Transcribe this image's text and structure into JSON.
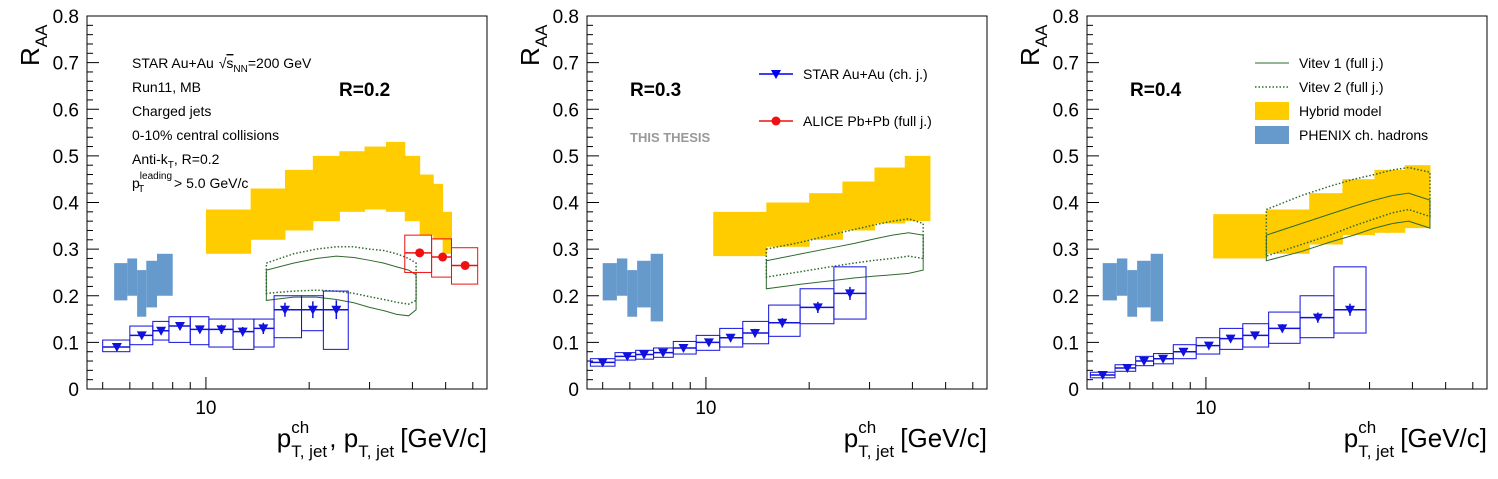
{
  "chart_data": [
    {
      "type": "scatter",
      "xscale": "log",
      "xlim": [
        4.5,
        66
      ],
      "ylim": [
        0,
        0.8
      ],
      "yticks": [
        0,
        0.1,
        0.2,
        0.3,
        0.4,
        0.5,
        0.6,
        0.7,
        0.8
      ],
      "yticklabels": [
        "0",
        "0.1",
        "0.2",
        "0.3",
        "0.4",
        "0.5",
        "0.6",
        "0.7",
        "0.8"
      ],
      "xticklabels": [
        {
          "x": 10,
          "label": "10"
        }
      ],
      "ylabel": "R",
      "ylabel_sub": "AA",
      "xlabel_parts": [
        {
          "base": "p",
          "sup": "ch",
          "sub": "T, jet"
        },
        {
          "base": ", p",
          "sup": "",
          "sub": "T, jet"
        }
      ],
      "xlabel_unit": "[GeV/c]",
      "radius_label": "R=0.2",
      "info_lines": [
        {
          "pre": "STAR Au+Au ",
          "sqrt": "s",
          "sqrt_sub": "NN",
          "post": "=200 GeV"
        },
        {
          "pre": "Run11, MB"
        },
        {
          "pre": "Charged jets"
        },
        {
          "pre": "0-10% central collisions"
        },
        {
          "pre": "Anti-k",
          "sub": "T",
          "post": ", R=0.2"
        },
        {
          "pre": "p",
          "sub": "T",
          "sup": "leading",
          "post": " > 5.0 GeV/c"
        }
      ],
      "legend": [],
      "watermark": "",
      "phenix": [
        {
          "x": [
            5.4,
            5.9
          ],
          "lo": 0.19,
          "hi": 0.27
        },
        {
          "x": [
            5.9,
            6.3
          ],
          "lo": 0.2,
          "hi": 0.28
        },
        {
          "x": [
            6.3,
            6.7
          ],
          "lo": 0.155,
          "hi": 0.255
        },
        {
          "x": [
            6.7,
            7.2
          ],
          "lo": 0.175,
          "hi": 0.275
        },
        {
          "x": [
            7.2,
            8.0
          ],
          "lo": 0.2,
          "hi": 0.29
        }
      ],
      "hybrid": [
        {
          "x": [
            10,
            13.5
          ],
          "lo": 0.29,
          "hi": 0.385
        },
        {
          "x": [
            13.5,
            17
          ],
          "lo": 0.32,
          "hi": 0.43
        },
        {
          "x": [
            17,
            20.5
          ],
          "lo": 0.34,
          "hi": 0.47
        },
        {
          "x": [
            20.5,
            24.5
          ],
          "lo": 0.36,
          "hi": 0.5
        },
        {
          "x": [
            24.5,
            29
          ],
          "lo": 0.38,
          "hi": 0.51
        },
        {
          "x": [
            29,
            33.5
          ],
          "lo": 0.385,
          "hi": 0.52
        },
        {
          "x": [
            33.5,
            38
          ],
          "lo": 0.38,
          "hi": 0.53
        },
        {
          "x": [
            38,
            42
          ],
          "lo": 0.36,
          "hi": 0.5
        },
        {
          "x": [
            42,
            46
          ],
          "lo": 0.33,
          "hi": 0.46
        },
        {
          "x": [
            46,
            49
          ],
          "lo": 0.32,
          "hi": 0.44
        },
        {
          "x": [
            49,
            52
          ],
          "lo": 0.29,
          "hi": 0.38
        }
      ],
      "vitev1": {
        "x": [
          15,
          18,
          21,
          24,
          27,
          30,
          33,
          36,
          39,
          41
        ],
        "lo": [
          0.19,
          0.197,
          0.197,
          0.192,
          0.185,
          0.175,
          0.168,
          0.16,
          0.157,
          0.17
        ],
        "hi": [
          0.255,
          0.27,
          0.28,
          0.285,
          0.282,
          0.276,
          0.27,
          0.262,
          0.255,
          0.245
        ]
      },
      "vitev2": {
        "x": [
          15,
          18,
          21,
          24,
          27,
          30,
          33,
          36,
          39,
          41
        ],
        "lo": [
          0.205,
          0.21,
          0.212,
          0.21,
          0.205,
          0.198,
          0.192,
          0.186,
          0.182,
          0.19
        ],
        "hi": [
          0.27,
          0.29,
          0.3,
          0.305,
          0.305,
          0.3,
          0.297,
          0.29,
          0.28,
          0.27
        ]
      },
      "star": {
        "x": [
          5.5,
          6.5,
          7.4,
          8.4,
          9.6,
          11.1,
          12.8,
          14.7,
          17.0,
          20.5,
          24.0
        ],
        "y": [
          0.09,
          0.115,
          0.125,
          0.135,
          0.128,
          0.128,
          0.123,
          0.13,
          0.17,
          0.17,
          0.17
        ],
        "stat": [
          0.008,
          0.008,
          0.008,
          0.008,
          0.008,
          0.01,
          0.01,
          0.012,
          0.015,
          0.018,
          0.02
        ],
        "sys_lo": [
          0.08,
          0.095,
          0.105,
          0.1,
          0.095,
          0.09,
          0.085,
          0.09,
          0.11,
          0.125,
          0.085
        ],
        "sys_hi": [
          0.105,
          0.135,
          0.145,
          0.155,
          0.155,
          0.15,
          0.15,
          0.15,
          0.2,
          0.2,
          0.21
        ],
        "xlo": [
          5.0,
          6.0,
          7.0,
          7.8,
          9.0,
          10.2,
          12.0,
          13.8,
          15.8,
          19.0,
          22.0
        ],
        "xhi": [
          6.0,
          7.0,
          7.8,
          9.0,
          10.2,
          12.0,
          13.8,
          15.8,
          19.0,
          22.0,
          26.0
        ]
      },
      "alice": {
        "x": [
          42,
          49,
          57
        ],
        "y": [
          0.292,
          0.283,
          0.265
        ],
        "sys_lo": [
          0.25,
          0.24,
          0.225
        ],
        "sys_hi": [
          0.33,
          0.322,
          0.303
        ],
        "xlo": [
          38,
          45.5,
          52
        ],
        "xhi": [
          45.5,
          52,
          62
        ]
      }
    },
    {
      "type": "scatter",
      "xscale": "log",
      "xlim": [
        4.5,
        66
      ],
      "ylim": [
        0,
        0.8
      ],
      "yticks": [
        0,
        0.1,
        0.2,
        0.3,
        0.4,
        0.5,
        0.6,
        0.7,
        0.8
      ],
      "yticklabels": [
        "0",
        "0.1",
        "0.2",
        "0.3",
        "0.4",
        "0.5",
        "0.6",
        "0.7",
        "0.8"
      ],
      "xticklabels": [
        {
          "x": 10,
          "label": "10"
        }
      ],
      "ylabel": "R",
      "ylabel_sub": "AA",
      "xlabel_parts": [
        {
          "base": "p",
          "sup": "ch",
          "sub": "T, jet"
        }
      ],
      "xlabel_unit": "[GeV/c]",
      "radius_label": "R=0.3",
      "info_lines": [],
      "legend": [
        {
          "label": "STAR Au+Au (ch. j.)",
          "kind": "star",
          "color": "#0000ee"
        },
        {
          "label": "ALICE Pb+Pb (full j.)",
          "kind": "alice",
          "color": "#ee1111"
        }
      ],
      "watermark": "THIS THESIS",
      "phenix": [
        {
          "x": [
            5.0,
            5.5
          ],
          "lo": 0.19,
          "hi": 0.27
        },
        {
          "x": [
            5.5,
            5.9
          ],
          "lo": 0.2,
          "hi": 0.28
        },
        {
          "x": [
            5.9,
            6.3
          ],
          "lo": 0.155,
          "hi": 0.255
        },
        {
          "x": [
            6.3,
            6.9
          ],
          "lo": 0.175,
          "hi": 0.275
        },
        {
          "x": [
            6.9,
            7.5
          ],
          "lo": 0.145,
          "hi": 0.29
        }
      ],
      "hybrid": [
        {
          "x": [
            10.5,
            15
          ],
          "lo": 0.285,
          "hi": 0.38
        },
        {
          "x": [
            15,
            20
          ],
          "lo": 0.305,
          "hi": 0.4
        },
        {
          "x": [
            20,
            25
          ],
          "lo": 0.32,
          "hi": 0.42
        },
        {
          "x": [
            25,
            31
          ],
          "lo": 0.34,
          "hi": 0.445
        },
        {
          "x": [
            31,
            38
          ],
          "lo": 0.355,
          "hi": 0.475
        },
        {
          "x": [
            38,
            45
          ],
          "lo": 0.36,
          "hi": 0.5
        }
      ],
      "vitev1": {
        "x": [
          15,
          19,
          23,
          27,
          31,
          35,
          39,
          43
        ],
        "lo": [
          0.215,
          0.225,
          0.232,
          0.238,
          0.242,
          0.245,
          0.248,
          0.255
        ],
        "hi": [
          0.275,
          0.29,
          0.302,
          0.312,
          0.322,
          0.33,
          0.335,
          0.33
        ]
      },
      "vitev2": {
        "x": [
          15,
          19,
          23,
          27,
          31,
          35,
          39,
          43
        ],
        "lo": [
          0.24,
          0.252,
          0.262,
          0.27,
          0.276,
          0.28,
          0.285,
          0.28
        ],
        "hi": [
          0.3,
          0.315,
          0.33,
          0.342,
          0.352,
          0.36,
          0.365,
          0.355
        ]
      },
      "star": {
        "x": [
          5.0,
          5.9,
          6.6,
          7.5,
          8.6,
          10.2,
          11.8,
          13.9,
          16.7,
          21.2,
          26.3
        ],
        "y": [
          0.057,
          0.07,
          0.074,
          0.078,
          0.088,
          0.1,
          0.11,
          0.12,
          0.142,
          0.175,
          0.205
        ],
        "stat": [
          0.005,
          0.005,
          0.006,
          0.006,
          0.007,
          0.008,
          0.008,
          0.009,
          0.01,
          0.012,
          0.014
        ],
        "sys_lo": [
          0.049,
          0.062,
          0.064,
          0.068,
          0.075,
          0.083,
          0.09,
          0.097,
          0.113,
          0.14,
          0.15
        ],
        "sys_hi": [
          0.065,
          0.078,
          0.083,
          0.088,
          0.102,
          0.115,
          0.13,
          0.145,
          0.18,
          0.215,
          0.262
        ]
      },
      "alice": {
        "x": [],
        "y": []
      }
    },
    {
      "type": "scatter",
      "xscale": "log",
      "xlim": [
        4.5,
        66
      ],
      "ylim": [
        0,
        0.8
      ],
      "yticks": [
        0,
        0.1,
        0.2,
        0.3,
        0.4,
        0.5,
        0.6,
        0.7,
        0.8
      ],
      "yticklabels": [
        "0",
        "0.1",
        "0.2",
        "0.3",
        "0.4",
        "0.5",
        "0.6",
        "0.7",
        "0.8"
      ],
      "xticklabels": [
        {
          "x": 10,
          "label": "10"
        }
      ],
      "ylabel": "R",
      "ylabel_sub": "AA",
      "xlabel_parts": [
        {
          "base": "p",
          "sup": "ch",
          "sub": "T, jet"
        }
      ],
      "xlabel_unit": "[GeV/c]",
      "radius_label": "R=0.4",
      "info_lines": [],
      "legend": [
        {
          "label": "Vitev 1 (full j.)",
          "kind": "line-solid",
          "color": "#2e6b2e"
        },
        {
          "label": "Vitev 2 (full j.)",
          "kind": "line-dotted",
          "color": "#2e6b2e"
        },
        {
          "label": "Hybrid model",
          "kind": "box",
          "color": "#ffcc00"
        },
        {
          "label": "PHENIX ch. hadrons",
          "kind": "box",
          "color": "#6699cc"
        }
      ],
      "watermark": "",
      "phenix": [
        {
          "x": [
            5.0,
            5.5
          ],
          "lo": 0.19,
          "hi": 0.27
        },
        {
          "x": [
            5.5,
            5.9
          ],
          "lo": 0.2,
          "hi": 0.28
        },
        {
          "x": [
            5.9,
            6.3
          ],
          "lo": 0.155,
          "hi": 0.255
        },
        {
          "x": [
            6.3,
            6.9
          ],
          "lo": 0.175,
          "hi": 0.275
        },
        {
          "x": [
            6.9,
            7.5
          ],
          "lo": 0.145,
          "hi": 0.29
        }
      ],
      "hybrid": [
        {
          "x": [
            10.5,
            15
          ],
          "lo": 0.28,
          "hi": 0.375
        },
        {
          "x": [
            15,
            20
          ],
          "lo": 0.29,
          "hi": 0.385
        },
        {
          "x": [
            20,
            25
          ],
          "lo": 0.31,
          "hi": 0.42
        },
        {
          "x": [
            25,
            31
          ],
          "lo": 0.33,
          "hi": 0.45
        },
        {
          "x": [
            31,
            38
          ],
          "lo": 0.335,
          "hi": 0.47
        },
        {
          "x": [
            38,
            45
          ],
          "lo": 0.345,
          "hi": 0.48
        }
      ],
      "vitev1": {
        "x": [
          15,
          19,
          23,
          27,
          31,
          35,
          39,
          45
        ],
        "lo": [
          0.275,
          0.295,
          0.315,
          0.33,
          0.345,
          0.355,
          0.36,
          0.345
        ],
        "hi": [
          0.33,
          0.355,
          0.375,
          0.392,
          0.405,
          0.415,
          0.42,
          0.405
        ]
      },
      "vitev2": {
        "x": [
          15,
          19,
          23,
          27,
          31,
          35,
          39,
          45
        ],
        "lo": [
          0.285,
          0.31,
          0.33,
          0.35,
          0.365,
          0.378,
          0.385,
          0.37
        ],
        "hi": [
          0.385,
          0.415,
          0.435,
          0.45,
          0.46,
          0.47,
          0.475,
          0.465
        ]
      },
      "star": {
        "x": [
          5.0,
          5.9,
          6.6,
          7.5,
          8.6,
          10.2,
          11.8,
          13.9,
          16.7,
          21.2,
          26.3
        ],
        "y": [
          0.03,
          0.045,
          0.06,
          0.065,
          0.08,
          0.093,
          0.108,
          0.115,
          0.13,
          0.153,
          0.17
        ],
        "stat": [
          0.004,
          0.004,
          0.005,
          0.005,
          0.006,
          0.007,
          0.007,
          0.008,
          0.009,
          0.011,
          0.013
        ],
        "sys_lo": [
          0.024,
          0.038,
          0.05,
          0.054,
          0.065,
          0.075,
          0.085,
          0.09,
          0.098,
          0.11,
          0.12
        ],
        "sys_hi": [
          0.036,
          0.052,
          0.07,
          0.076,
          0.095,
          0.11,
          0.13,
          0.14,
          0.165,
          0.2,
          0.262
        ]
      },
      "alice": {
        "x": [],
        "y": []
      }
    }
  ]
}
